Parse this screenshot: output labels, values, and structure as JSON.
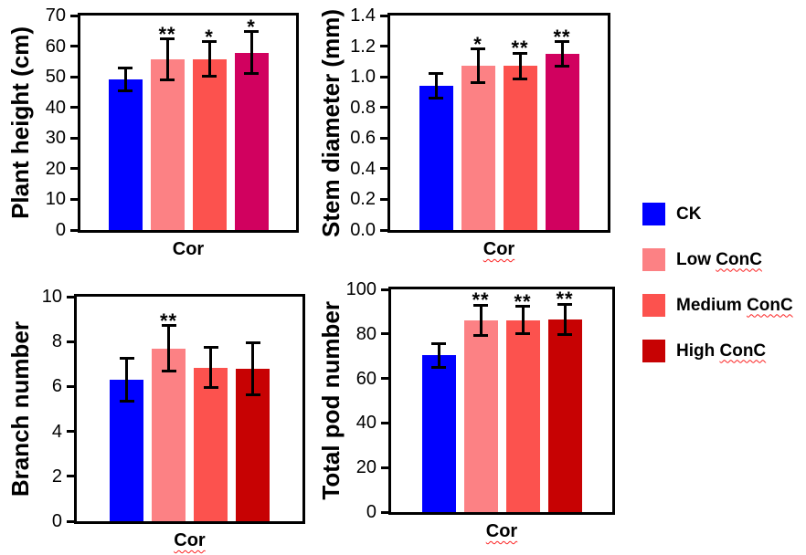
{
  "figure_background": "#ffffff",
  "colors": {
    "ck_blue": "#0000FF",
    "low_pink": "#FC8184",
    "medium_red": "#FC524E",
    "high_magenta_top_row": "#D1015F",
    "high_darkred_bottom_row": "#C70203",
    "axis_black": "#000000",
    "spellcheck_underline_red": "#fb2020"
  },
  "legend": {
    "items": [
      {
        "label": "CK",
        "pre": "CK",
        "underlined_part": "",
        "color": "#0000FF"
      },
      {
        "label": "Low ConC",
        "pre": "Low ",
        "underlined_part": "ConC",
        "color": "#FC8184"
      },
      {
        "label": "Medium ConC",
        "pre": "Medium ",
        "underlined_part": "ConC",
        "color": "#FC524E"
      },
      {
        "label": "High ConC",
        "pre": "High ",
        "underlined_part": "ConC",
        "color": "#C70203"
      }
    ]
  },
  "chart_data": [
    {
      "type": "bar",
      "title": "",
      "ylabel": "Plant height (cm)",
      "xlabel": "Cor",
      "xlabel_spellcheck_underline": false,
      "ylim": [
        0,
        70
      ],
      "ytick_labels": [
        "0",
        "10",
        "20",
        "30",
        "40",
        "50",
        "60",
        "70"
      ],
      "categories": [
        "CK",
        "Low ConC",
        "Medium ConC",
        "High ConC"
      ],
      "values": [
        49.2,
        55.6,
        55.8,
        57.9
      ],
      "errors": [
        3.7,
        6.7,
        5.7,
        6.8
      ],
      "significance": [
        "",
        "**",
        "*",
        "*"
      ],
      "bar_colors": [
        "#0000FF",
        "#FC8184",
        "#FC524E",
        "#D1015F"
      ],
      "grid": false
    },
    {
      "type": "bar",
      "title": "",
      "ylabel": "Stem diameter (mm)",
      "xlabel": "Cor",
      "xlabel_spellcheck_underline": true,
      "ylim": [
        0,
        1.4
      ],
      "ytick_labels": [
        "0.0",
        "0.2",
        "0.4",
        "0.6",
        "0.8",
        "1.0",
        "1.2",
        "1.4"
      ],
      "categories": [
        "CK",
        "Low ConC",
        "Medium ConC",
        "High ConC"
      ],
      "values": [
        0.94,
        1.07,
        1.07,
        1.15
      ],
      "errors": [
        0.08,
        0.11,
        0.085,
        0.08
      ],
      "significance": [
        "",
        "*",
        "**",
        "**"
      ],
      "bar_colors": [
        "#0000FF",
        "#FC8184",
        "#FC524E",
        "#D1015F"
      ],
      "grid": false
    },
    {
      "type": "bar",
      "title": "",
      "ylabel": "Branch number",
      "xlabel": "Cor",
      "xlabel_spellcheck_underline": true,
      "ylim": [
        0,
        10
      ],
      "ytick_labels": [
        "0",
        "2",
        "4",
        "6",
        "8",
        "10"
      ],
      "categories": [
        "CK",
        "Low ConC",
        "Medium ConC",
        "High ConC"
      ],
      "values": [
        6.3,
        7.7,
        6.85,
        6.8
      ],
      "errors": [
        0.95,
        1.0,
        0.9,
        1.15
      ],
      "significance": [
        "",
        "**",
        "",
        ""
      ],
      "bar_colors": [
        "#0000FF",
        "#FC8184",
        "#FC524E",
        "#C70203"
      ],
      "grid": false
    },
    {
      "type": "bar",
      "title": "",
      "ylabel": "Total pod number",
      "xlabel": "Cor",
      "xlabel_spellcheck_underline": true,
      "ylim": [
        0,
        100
      ],
      "ytick_labels": [
        "0",
        "20",
        "40",
        "60",
        "80",
        "100"
      ],
      "categories": [
        "CK",
        "Low ConC",
        "Medium ConC",
        "High ConC"
      ],
      "values": [
        70.3,
        86.2,
        86.2,
        86.5
      ],
      "errors": [
        5.2,
        6.8,
        6.1,
        6.9
      ],
      "significance": [
        "",
        "**",
        "**",
        "**"
      ],
      "bar_colors": [
        "#0000FF",
        "#FC8184",
        "#FC524E",
        "#C70203"
      ],
      "grid": false
    }
  ]
}
